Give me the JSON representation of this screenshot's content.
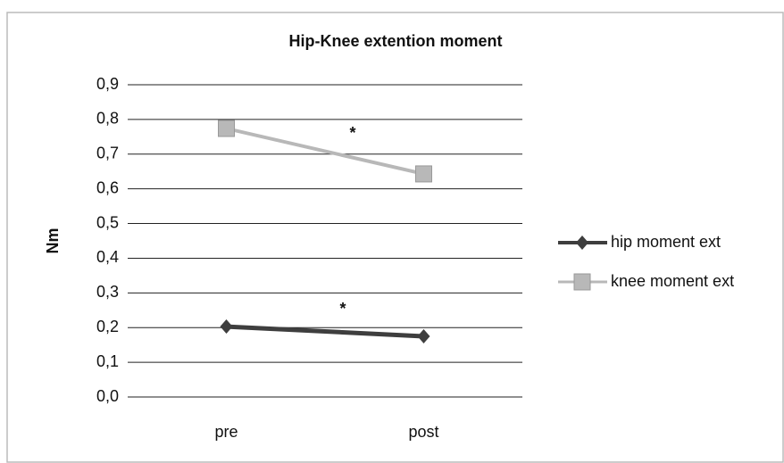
{
  "chart_data": {
    "type": "line",
    "title": "Hip-Knee extention moment",
    "ylabel": "Nm",
    "categories": [
      "pre",
      "post"
    ],
    "series": [
      {
        "name": "hip moment ext",
        "color": "#3e3e3e",
        "marker": "diamond",
        "values": [
          0.203,
          0.175
        ]
      },
      {
        "name": "knee moment ext",
        "color": "#b8b8b8",
        "marker": "square",
        "values": [
          0.774,
          0.643
        ]
      }
    ],
    "annotations": [
      "*",
      "*"
    ],
    "ylim": [
      0,
      0.9
    ],
    "yticks": [
      {
        "value": 0,
        "label": "0,0"
      },
      {
        "value": 0.1,
        "label": "0,1"
      },
      {
        "value": 0.2,
        "label": "0,2"
      },
      {
        "value": 0.3,
        "label": "0,3"
      },
      {
        "value": 0.4,
        "label": "0,4"
      },
      {
        "value": 0.5,
        "label": "0,5"
      },
      {
        "value": 0.6,
        "label": "0,6"
      },
      {
        "value": 0.7,
        "label": "0,7"
      },
      {
        "value": 0.8,
        "label": "0,8"
      },
      {
        "value": 0.9,
        "label": "0,9"
      }
    ],
    "grid": true,
    "legend": "right"
  }
}
